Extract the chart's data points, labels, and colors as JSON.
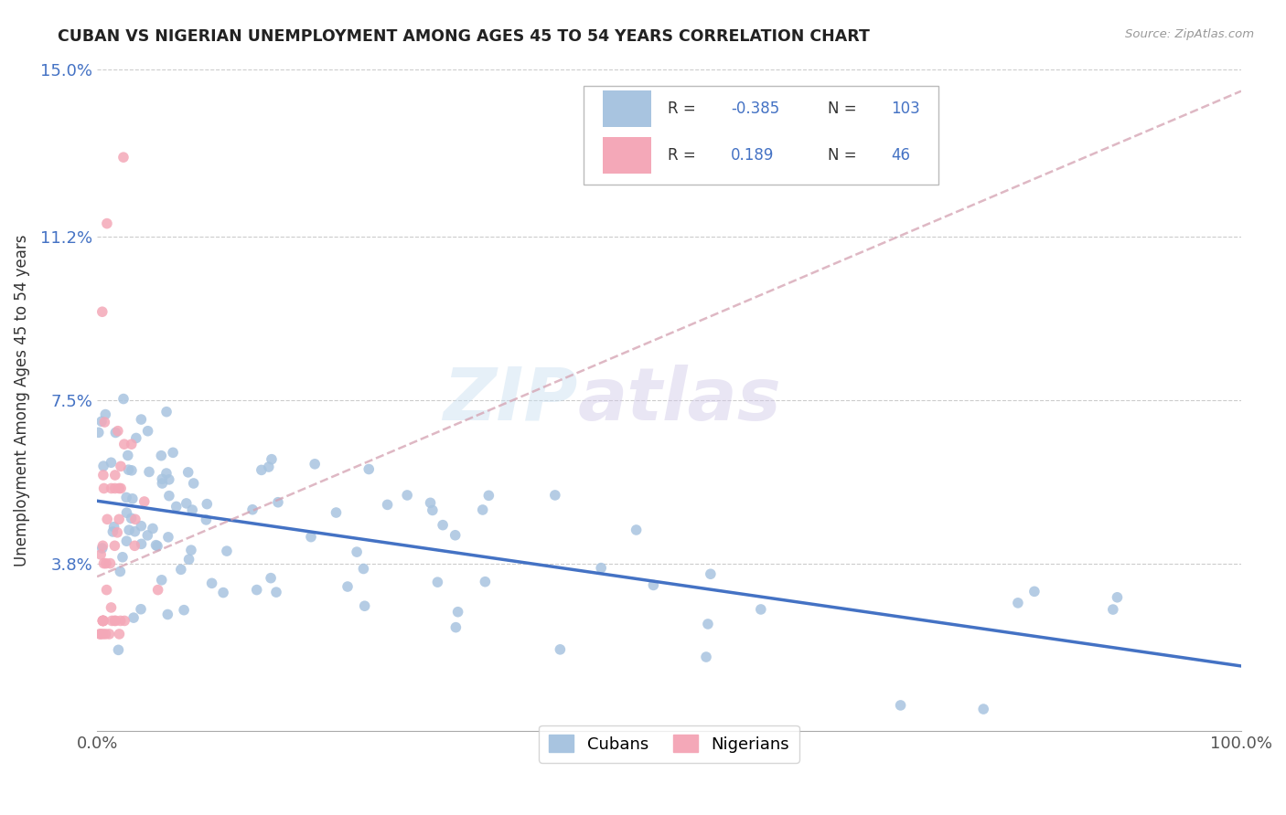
{
  "title": "CUBAN VS NIGERIAN UNEMPLOYMENT AMONG AGES 45 TO 54 YEARS CORRELATION CHART",
  "source": "Source: ZipAtlas.com",
  "ylabel": "Unemployment Among Ages 45 to 54 years",
  "xlim": [
    0.0,
    1.0
  ],
  "ylim": [
    0.0,
    0.15
  ],
  "xticks": [
    0.0,
    1.0
  ],
  "xticklabels": [
    "0.0%",
    "100.0%"
  ],
  "yticks": [
    0.038,
    0.075,
    0.112,
    0.15
  ],
  "yticklabels": [
    "3.8%",
    "7.5%",
    "11.2%",
    "15.0%"
  ],
  "cuban_R": "-0.385",
  "cuban_N": "103",
  "nigerian_R": "0.189",
  "nigerian_N": "46",
  "cuban_color": "#a8c4e0",
  "nigerian_color": "#f4a8b8",
  "cuban_line_color": "#4472c4",
  "nigerian_line_color": "#d4a0b0",
  "watermark_zip": "ZIP",
  "watermark_atlas": "atlas",
  "background_color": "#ffffff",
  "cuban_line_y0": 0.051,
  "cuban_line_y1": 0.02,
  "nigerian_line_y0": 0.035,
  "nigerian_line_y1": 0.145
}
